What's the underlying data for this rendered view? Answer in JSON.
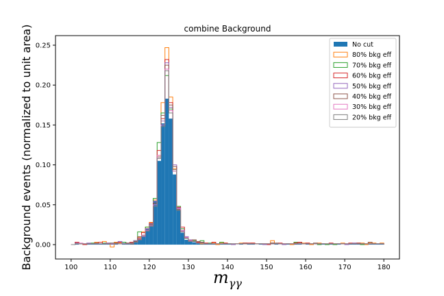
{
  "chart_data": {
    "type": "histogram",
    "title": "combine Background",
    "xlabel_main": "m",
    "xlabel_sub": "γγ",
    "ylabel": "Background events (normalized to unit area)",
    "xlim": [
      96,
      184
    ],
    "ylim": [
      -0.018,
      0.262
    ],
    "x_ticks": [
      {
        "v": 100,
        "label": "100"
      },
      {
        "v": 110,
        "label": "110"
      },
      {
        "v": 120,
        "label": "120"
      },
      {
        "v": 130,
        "label": "130"
      },
      {
        "v": 140,
        "label": "140"
      },
      {
        "v": 150,
        "label": "150"
      },
      {
        "v": 160,
        "label": "160"
      },
      {
        "v": 170,
        "label": "170"
      },
      {
        "v": 180,
        "label": "180"
      }
    ],
    "y_ticks": [
      {
        "v": 0.0,
        "label": "0.00"
      },
      {
        "v": 0.05,
        "label": "0.05"
      },
      {
        "v": 0.1,
        "label": "0.10"
      },
      {
        "v": 0.15,
        "label": "0.15"
      },
      {
        "v": 0.2,
        "label": "0.20"
      },
      {
        "v": 0.25,
        "label": "0.25"
      }
    ],
    "legend_position": "top-right",
    "bin_width": 1,
    "bin_edges_start": 100,
    "series": [
      {
        "name": "No cut",
        "style": "filled",
        "color": "#1f77b4",
        "values": [
          0,
          0.001,
          0,
          0.001,
          0.002,
          0.001,
          0.001,
          0.001,
          0.001,
          0.001,
          0.002,
          0.001,
          0,
          0.002,
          0.001,
          0.002,
          0.004,
          0.006,
          0.01,
          0.02,
          0.025,
          0.055,
          0.105,
          0.152,
          0.183,
          0.158,
          0.088,
          0.045,
          0.015,
          0.006,
          0.004,
          0.003,
          0.002,
          0.001,
          0.001,
          0.001,
          0.001,
          0.001,
          0.001,
          0.001,
          0.001,
          0,
          0,
          0.001,
          0,
          0.001,
          0.001,
          0,
          0.001,
          0.001,
          0.001,
          0,
          0.001,
          0,
          0.001,
          0.001,
          0,
          0.001,
          0.001,
          0,
          0.001,
          0.001,
          0,
          0.001,
          0.001,
          0,
          0.001,
          0.001,
          0.001,
          0,
          0,
          0.001,
          0.001,
          0.001,
          0.001,
          0.001,
          0.001,
          0.001,
          0.001,
          0.001
        ]
      },
      {
        "name": "80% bkg eff",
        "style": "step",
        "color": "#ff7f0e",
        "values": [
          0,
          0.002,
          0.001,
          0,
          0.001,
          0.001,
          0.003,
          0.001,
          0.004,
          0.001,
          -0.003,
          0.003,
          0.002,
          0.003,
          0.001,
          0.001,
          0.003,
          0.009,
          0.016,
          0.022,
          0.028,
          0.056,
          0.112,
          0.178,
          0.247,
          0.185,
          0.095,
          0.045,
          0.018,
          0.009,
          0.005,
          0.004,
          0.003,
          0.001,
          0.002,
          0.001,
          0.002,
          0,
          0.002,
          0.002,
          0.001,
          0,
          0.001,
          0.002,
          0.001,
          0.001,
          0.002,
          0.001,
          0.001,
          0.001,
          0.001,
          0.005,
          0.001,
          0.001,
          0.001,
          0.001,
          0,
          0.002,
          0.003,
          0.002,
          0.002,
          0,
          0.001,
          0.002,
          0.001,
          0,
          0.001,
          0.001,
          0.001,
          0.002,
          0,
          0.001,
          0.002,
          0.001,
          0.002,
          0,
          0.002,
          0.002,
          0.001,
          0.002
        ]
      },
      {
        "name": "70% bkg eff",
        "style": "step",
        "color": "#2ca02c",
        "values": [
          0,
          0.001,
          0.001,
          0,
          0.001,
          0.002,
          0.001,
          0.001,
          0.002,
          0.001,
          0.002,
          0.002,
          0.001,
          0.003,
          0.001,
          0.002,
          0.005,
          0.016,
          0.012,
          0.022,
          0.026,
          0.058,
          0.128,
          0.165,
          0.212,
          0.17,
          0.092,
          0.048,
          0.02,
          0.008,
          0.005,
          0.005,
          0.002,
          0.005,
          0.001,
          0.002,
          0.001,
          0.001,
          0.003,
          0.001,
          0.001,
          0.001,
          0.001,
          0.001,
          0.002,
          0.001,
          0.001,
          0.001,
          0.001,
          0.001,
          0.001,
          0.002,
          0.001,
          0.001,
          0,
          0.001,
          0.001,
          0.003,
          0.003,
          0.001,
          0.001,
          0.001,
          0.001,
          0,
          0.001,
          0,
          0.001,
          0,
          0.001,
          0.001,
          0.001,
          0.001,
          0.001,
          0.002,
          0,
          0.001,
          0.001,
          0.001,
          0.001,
          0.001
        ]
      },
      {
        "name": "60% bkg eff",
        "style": "step",
        "color": "#d62728",
        "values": [
          0,
          0.003,
          0.001,
          0,
          0.001,
          0.001,
          0.001,
          0.003,
          0.001,
          0.002,
          0.001,
          0.002,
          0.003,
          0.001,
          0.001,
          0.003,
          0.003,
          0.007,
          0.015,
          0.02,
          0.027,
          0.052,
          0.118,
          0.158,
          0.232,
          0.178,
          0.098,
          0.047,
          0.022,
          0.009,
          0.005,
          0.004,
          0.003,
          0.002,
          0.002,
          0.001,
          0.003,
          0.001,
          0.001,
          0.002,
          0.001,
          0,
          0.001,
          0.001,
          0.002,
          0.002,
          0.002,
          0.001,
          0.001,
          0.001,
          0,
          0.002,
          0.001,
          0.002,
          0.001,
          0.001,
          0.001,
          0.002,
          0.003,
          0.001,
          0.002,
          0.001,
          0.001,
          0.001,
          0.001,
          0.001,
          0.002,
          0.001,
          0.001,
          0.001,
          0.001,
          0.002,
          0.001,
          0.002,
          0.001,
          0.001,
          0.001,
          0.001,
          0.001,
          0.001
        ]
      },
      {
        "name": "50% bkg eff",
        "style": "step",
        "color": "#9467bd",
        "values": [
          0,
          0.002,
          0.001,
          0.001,
          0.002,
          0.001,
          0.002,
          0.001,
          0.001,
          0.002,
          0.001,
          0.001,
          0.004,
          0.001,
          0.002,
          0.002,
          0.005,
          0.008,
          0.01,
          0.02,
          0.026,
          0.054,
          0.108,
          0.155,
          0.228,
          0.172,
          0.1,
          0.046,
          0.018,
          0.01,
          0.006,
          0.004,
          0.002,
          0.003,
          0.001,
          0.001,
          0.001,
          0.001,
          0.001,
          0.001,
          0.001,
          0,
          0.001,
          0.001,
          0.001,
          0.001,
          0.001,
          0.001,
          0.001,
          0,
          0.001,
          0.001,
          0.001,
          0.001,
          0,
          0.001,
          0.001,
          0.001,
          0.001,
          0.001,
          0.001,
          0.001,
          0.001,
          0.001,
          0.001,
          0.001,
          0.001,
          0.001,
          0.001,
          0.001,
          0,
          0.001,
          0.002,
          0.001,
          0.001,
          0.001,
          0.001,
          0.001,
          0.001,
          0.001
        ]
      },
      {
        "name": "40% bkg eff",
        "style": "step",
        "color": "#8c564b",
        "values": [
          0,
          0.001,
          0.001,
          0.001,
          0.001,
          0.001,
          0.002,
          0.001,
          0.001,
          0.001,
          0.002,
          0.002,
          0.001,
          0.001,
          0.002,
          0.001,
          0.004,
          0.01,
          0.012,
          0.018,
          0.025,
          0.052,
          0.11,
          0.162,
          0.225,
          0.175,
          0.098,
          0.044,
          0.016,
          0.008,
          0.005,
          0.006,
          0.004,
          0.003,
          0.001,
          0.001,
          0.001,
          0.001,
          0.001,
          0.001,
          0.001,
          0.001,
          0.001,
          0.001,
          0.001,
          0.001,
          0.001,
          0.001,
          0.001,
          0.001,
          0.001,
          0.002,
          0.002,
          0.001,
          0.001,
          0.001,
          0.001,
          0.001,
          0.002,
          0.001,
          0.001,
          0.001,
          0.002,
          0.001,
          0.001,
          0.001,
          0.001,
          0.001,
          0.001,
          0.001,
          0.001,
          0.001,
          0.001,
          0.001,
          0.001,
          0.001,
          0.003,
          0.001,
          0.001,
          0.001
        ]
      },
      {
        "name": "30% bkg eff",
        "style": "step",
        "color": "#e377c2",
        "values": [
          0,
          0.001,
          0.002,
          0.001,
          0.001,
          0.001,
          0.001,
          0.001,
          0.001,
          0.001,
          0.001,
          0.001,
          0.001,
          0.001,
          0.001,
          0.002,
          0.003,
          0.006,
          0.012,
          0.018,
          0.024,
          0.05,
          0.112,
          0.15,
          0.22,
          0.168,
          0.092,
          0.045,
          0.017,
          0.009,
          0.005,
          0.004,
          0.002,
          0.002,
          0.001,
          0.001,
          0.001,
          0.001,
          0.001,
          0.001,
          0.001,
          0.001,
          0.001,
          0.001,
          0.001,
          0.001,
          0.001,
          0.001,
          0.001,
          0.001,
          0.001,
          0.001,
          0.001,
          0.001,
          0.001,
          0.001,
          0.001,
          0.001,
          0.001,
          0.001,
          0.001,
          0.001,
          0.001,
          0.001,
          0.001,
          0.001,
          0.001,
          0.001,
          0.001,
          0.001,
          0.001,
          0.001,
          0.001,
          0.001,
          0.001,
          0.001,
          0.001,
          0.001,
          0.001,
          0.001
        ]
      },
      {
        "name": "20% bkg eff",
        "style": "step",
        "color": "#7f7f7f",
        "values": [
          0,
          0.001,
          0.001,
          0.001,
          0.001,
          0.001,
          0.001,
          0.001,
          0.001,
          0.001,
          0.002,
          0.001,
          0.001,
          0.001,
          0.001,
          0.002,
          0.003,
          0.006,
          0.011,
          0.017,
          0.023,
          0.048,
          0.108,
          0.148,
          0.218,
          0.165,
          0.094,
          0.043,
          0.016,
          0.008,
          0.004,
          0.004,
          0.002,
          0.002,
          0.001,
          0.001,
          0.001,
          0.001,
          0.001,
          0.001,
          0.001,
          0.001,
          0.001,
          0.001,
          0.001,
          0.001,
          0.001,
          0.001,
          0.001,
          0.001,
          0.001,
          0.001,
          0.001,
          0.001,
          0.001,
          0.001,
          0.001,
          0.001,
          0.001,
          0.001,
          0.001,
          0.001,
          0.001,
          0.001,
          0.001,
          0.001,
          0.001,
          0.001,
          0.001,
          0.001,
          0.001,
          0.001,
          0.001,
          0.001,
          0.001,
          0.001,
          0.001,
          0.001,
          0.001,
          0.001
        ]
      }
    ]
  }
}
